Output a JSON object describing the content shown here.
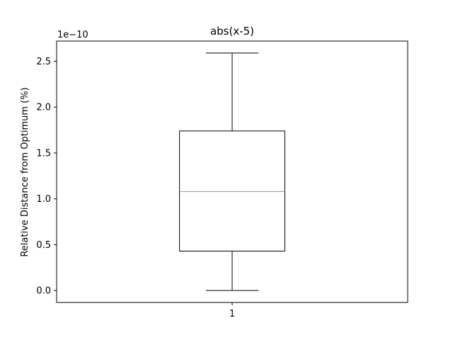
{
  "chart_data": {
    "type": "boxplot",
    "title": "abs(x-5)",
    "ylabel": "Relative Distance from Optimum (%)",
    "xlabel": "",
    "y_offset_label": "1e−10",
    "y_scale_factor": 1e-10,
    "ylim": [
      -0.13,
      2.72
    ],
    "yticks": [
      0.0,
      0.5,
      1.0,
      1.5,
      2.0,
      2.5
    ],
    "ytick_labels": [
      "0.0",
      "0.5",
      "1.0",
      "1.5",
      "2.0",
      "2.5"
    ],
    "categories": [
      "1"
    ],
    "boxes": [
      {
        "category": "1",
        "whisker_low": 0.0,
        "q1": 0.43,
        "median": 1.08,
        "q3": 1.74,
        "whisker_high": 2.59
      }
    ],
    "grid": false,
    "colors": {
      "box": "#000000",
      "median": "#ff7f0e",
      "axes": "#000000"
    }
  }
}
